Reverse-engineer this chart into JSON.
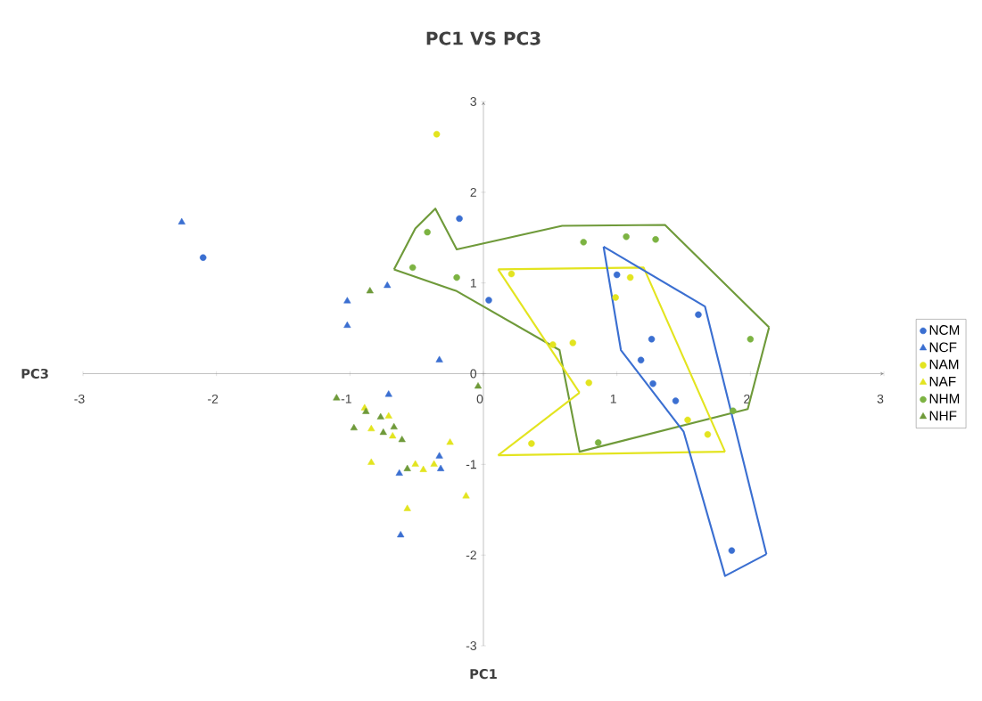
{
  "chart_data": {
    "type": "scatter",
    "title": "PC1 VS PC3",
    "xlabel": "PC1",
    "ylabel": "PC3",
    "xlim": [
      -3,
      3
    ],
    "ylim": [
      -3,
      3
    ],
    "xticks": [
      -3,
      -2,
      -1,
      0,
      1,
      2,
      3
    ],
    "yticks": [
      -3,
      -2,
      -1,
      0,
      1,
      2,
      3
    ],
    "legend": "right",
    "series": [
      {
        "name": "NCM",
        "color": "#3b6fd1",
        "marker": "circle",
        "x": [
          -2.1,
          -0.18,
          0.04,
          1.0,
          1.61,
          1.26,
          1.18,
          1.27,
          1.44,
          1.86
        ],
        "values": [
          1.28,
          1.71,
          0.81,
          1.09,
          0.65,
          0.38,
          0.15,
          -0.11,
          -0.3,
          -1.95
        ]
      },
      {
        "name": "NCF",
        "color": "#3b6fd1",
        "marker": "triangle",
        "x": [
          -2.26,
          -1.02,
          -1.02,
          -0.72,
          -0.33,
          -0.71,
          -0.63,
          -0.33,
          -0.32,
          -0.62
        ],
        "values": [
          1.67,
          0.8,
          0.53,
          0.97,
          0.15,
          -0.23,
          -1.1,
          -0.91,
          -1.05,
          -1.78
        ]
      },
      {
        "name": "NAM",
        "color": "#e3e41f",
        "marker": "circle",
        "x": [
          -0.35,
          0.21,
          1.1,
          0.99,
          0.67,
          0.52,
          0.79,
          0.36,
          1.53,
          1.68
        ],
        "values": [
          2.64,
          1.1,
          1.06,
          0.84,
          0.34,
          0.32,
          -0.1,
          -0.77,
          -0.51,
          -0.67
        ]
      },
      {
        "name": "NAF",
        "color": "#e3e41f",
        "marker": "triangle",
        "x": [
          -0.89,
          -0.71,
          -0.84,
          -0.68,
          -0.25,
          -0.84,
          -0.51,
          -0.45,
          -0.37,
          -0.13,
          -0.57
        ],
        "values": [
          -0.38,
          -0.47,
          -0.61,
          -0.69,
          -0.76,
          -0.98,
          -1.0,
          -1.06,
          -1.0,
          -1.35,
          -1.49
        ]
      },
      {
        "name": "NHM",
        "color": "#7cb342",
        "marker": "circle",
        "x": [
          -0.42,
          -0.53,
          -0.2,
          0.75,
          1.07,
          1.29,
          2.0,
          0.86,
          1.87
        ],
        "values": [
          1.56,
          1.17,
          1.06,
          1.45,
          1.51,
          1.48,
          0.38,
          -0.76,
          -0.41
        ]
      },
      {
        "name": "NHF",
        "color": "#6f9a3a",
        "marker": "triangle",
        "x": [
          -0.85,
          -0.04,
          -1.1,
          -0.88,
          -0.77,
          -0.67,
          -0.97,
          -0.75,
          -0.61,
          -0.57
        ],
        "values": [
          0.91,
          -0.14,
          -0.27,
          -0.42,
          -0.48,
          -0.59,
          -0.6,
          -0.65,
          -0.73,
          -1.05
        ]
      },
      {
        "type": "line",
        "color": "#6f9a3a",
        "marker": "none",
        "x": [
          -0.67,
          -0.51,
          -0.36,
          -0.2,
          0.59,
          1.36,
          2.14
        ],
        "values": [
          1.15,
          1.6,
          1.82,
          1.37,
          1.63,
          1.64,
          0.51
        ]
      },
      {
        "type": "line",
        "color": "#6f9a3a",
        "marker": "none",
        "x": [
          -0.67,
          -0.2,
          0.57,
          0.72,
          1.98,
          2.14
        ],
        "values": [
          1.15,
          0.91,
          0.26,
          -0.86,
          -0.39,
          0.51
        ]
      },
      {
        "type": "line",
        "color": "#e3e41f",
        "marker": "none",
        "x": [
          0.11,
          1.2,
          1.81
        ],
        "values": [
          1.15,
          1.17,
          -0.86
        ]
      },
      {
        "type": "line",
        "color": "#e3e41f",
        "marker": "none",
        "x": [
          0.11,
          1.81
        ],
        "values": [
          -0.9,
          -0.86
        ]
      },
      {
        "type": "line",
        "color": "#e3e41f",
        "marker": "none",
        "x": [
          0.11,
          0.72
        ],
        "values": [
          -0.9,
          -0.21
        ]
      },
      {
        "type": "line",
        "color": "#e3e41f",
        "marker": "none",
        "x": [
          0.11,
          0.72
        ],
        "values": [
          1.15,
          -0.21
        ]
      },
      {
        "type": "line",
        "color": "#3b6fd1",
        "marker": "none",
        "x": [
          0.9,
          1.66,
          2.12
        ],
        "values": [
          1.4,
          0.74,
          -1.99
        ]
      },
      {
        "type": "line",
        "color": "#3b6fd1",
        "marker": "none",
        "x": [
          0.9,
          1.03,
          1.5,
          1.81,
          2.12
        ],
        "values": [
          1.4,
          0.26,
          -0.64,
          -2.23,
          -1.99
        ]
      }
    ]
  }
}
